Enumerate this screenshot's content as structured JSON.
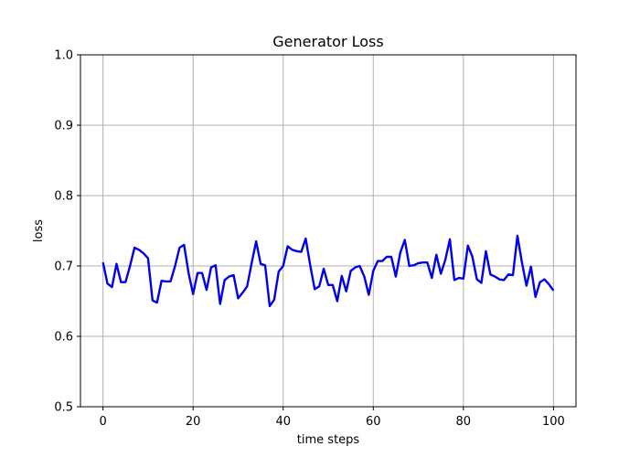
{
  "chart_data": {
    "type": "line",
    "title": "Generator Loss",
    "xlabel": "time steps",
    "ylabel": "loss",
    "xlim": [
      -5,
      105
    ],
    "ylim": [
      0.5,
      1.0
    ],
    "xticks": [
      0,
      20,
      40,
      60,
      80,
      100
    ],
    "yticks": [
      0.5,
      0.6,
      0.7,
      0.8,
      0.9,
      1.0
    ],
    "ytick_labels": [
      "0.5",
      "0.6",
      "0.7",
      "0.8",
      "0.9",
      "1.0"
    ],
    "grid": true,
    "series": [
      {
        "color": "#0000ee",
        "x": [
          0,
          1,
          2,
          3,
          4,
          5,
          6,
          7,
          8,
          9,
          10,
          11,
          12,
          13,
          14,
          15,
          16,
          17,
          18,
          19,
          20,
          21,
          22,
          23,
          24,
          25,
          26,
          27,
          28,
          29,
          30,
          31,
          32,
          33,
          34,
          35,
          36,
          37,
          38,
          39,
          40,
          41,
          42,
          43,
          44,
          45,
          46,
          47,
          48,
          49,
          50,
          51,
          52,
          53,
          54,
          55,
          56,
          57,
          58,
          59,
          60,
          61,
          62,
          63,
          64,
          65,
          66,
          67,
          68,
          69,
          70,
          71,
          72,
          73,
          74,
          75,
          76,
          77,
          78,
          79,
          80,
          81,
          82,
          83,
          84,
          85,
          86,
          87,
          88,
          89,
          90,
          91,
          92,
          93,
          94,
          95,
          96,
          97,
          98,
          99,
          100
        ],
        "y": [
          0.705,
          0.675,
          0.67,
          0.703,
          0.677,
          0.677,
          0.7,
          0.726,
          0.723,
          0.718,
          0.711,
          0.651,
          0.648,
          0.679,
          0.678,
          0.678,
          0.7,
          0.726,
          0.73,
          0.69,
          0.66,
          0.69,
          0.69,
          0.666,
          0.698,
          0.701,
          0.646,
          0.68,
          0.685,
          0.687,
          0.654,
          0.662,
          0.671,
          0.704,
          0.735,
          0.703,
          0.701,
          0.643,
          0.652,
          0.692,
          0.7,
          0.728,
          0.723,
          0.721,
          0.72,
          0.739,
          0.701,
          0.667,
          0.671,
          0.696,
          0.673,
          0.673,
          0.65,
          0.686,
          0.664,
          0.693,
          0.698,
          0.7,
          0.685,
          0.659,
          0.693,
          0.707,
          0.707,
          0.713,
          0.713,
          0.685,
          0.719,
          0.737,
          0.7,
          0.701,
          0.704,
          0.705,
          0.705,
          0.683,
          0.716,
          0.689,
          0.709,
          0.738,
          0.68,
          0.683,
          0.682,
          0.729,
          0.713,
          0.681,
          0.676,
          0.721,
          0.688,
          0.685,
          0.681,
          0.68,
          0.688,
          0.687,
          0.743,
          0.705,
          0.672,
          0.699,
          0.656,
          0.677,
          0.681,
          0.674,
          0.665
        ]
      }
    ]
  }
}
